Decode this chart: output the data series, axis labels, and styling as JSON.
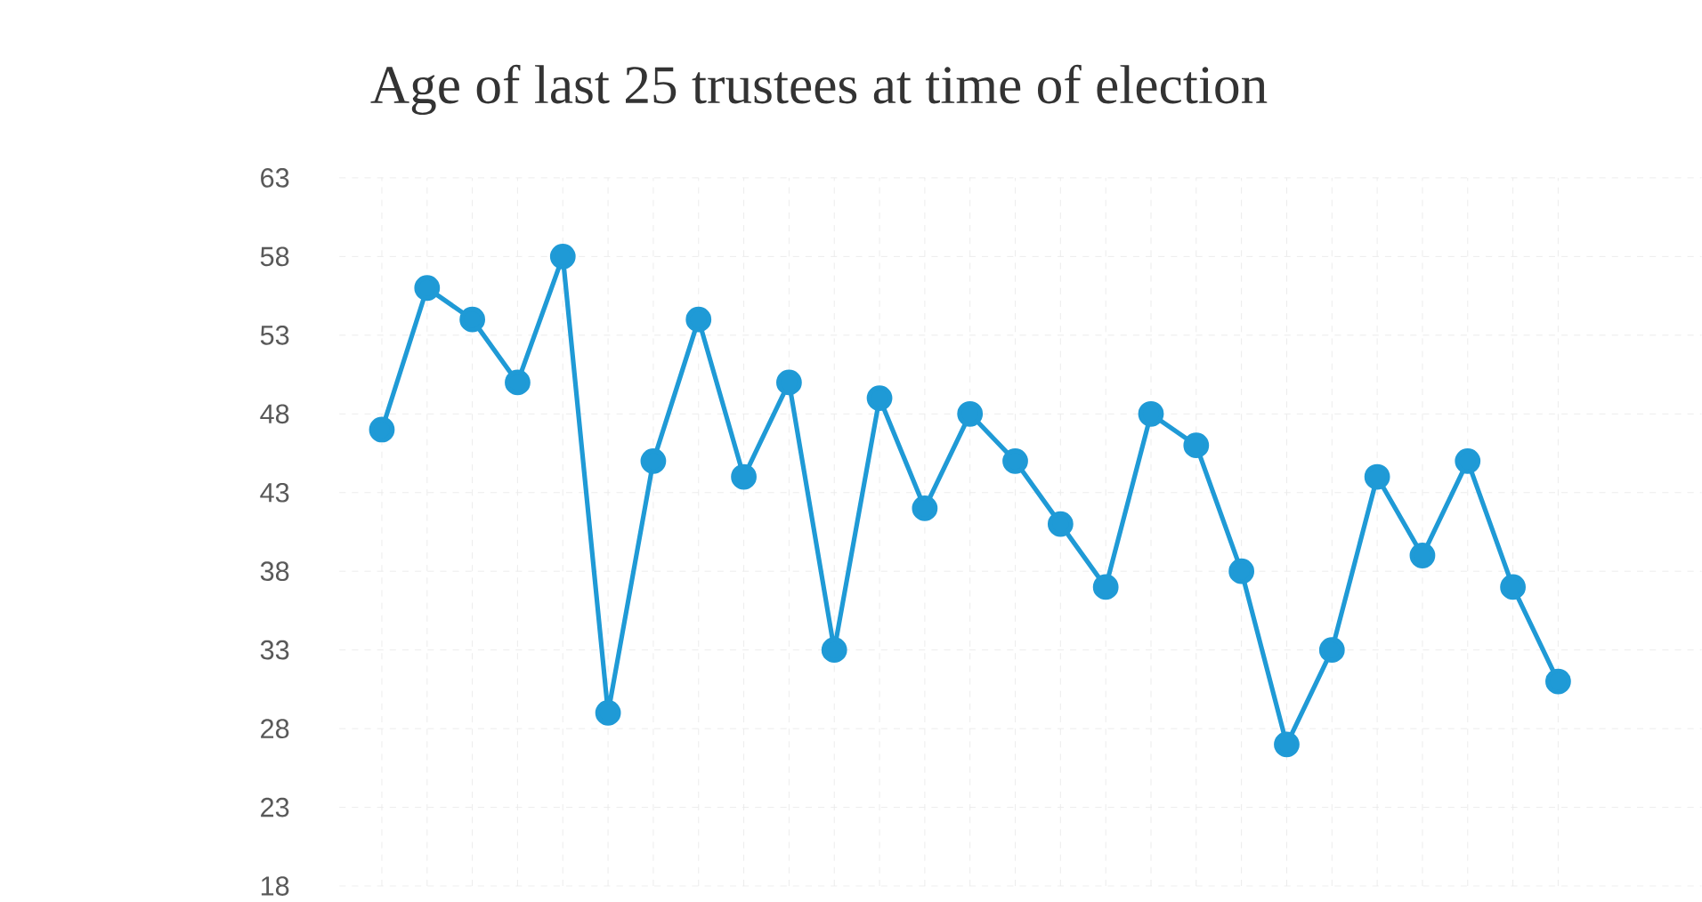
{
  "chart_data": {
    "type": "line",
    "title": "Age of last 25 trustees at time of election",
    "categories": [
      null,
      null,
      null,
      null,
      null,
      null,
      null,
      null,
      null,
      null,
      null,
      null,
      null,
      null,
      null,
      null,
      null,
      null,
      null,
      null,
      null,
      null,
      null,
      null,
      null,
      null,
      null
    ],
    "series": [
      {
        "color": "#1f9ad6",
        "values": [
          47,
          56,
          54,
          50,
          58,
          29,
          45,
          54,
          44,
          50,
          33,
          49,
          42,
          48,
          45,
          41,
          37,
          48,
          46,
          38,
          27,
          33,
          44,
          39,
          45,
          37,
          31
        ]
      }
    ],
    "ylim": [
      18,
      63
    ],
    "yticks": [
      18,
      23,
      28,
      33,
      38,
      43,
      48,
      53,
      58,
      63
    ],
    "grid": true,
    "marker": "circle",
    "line_style": "solid"
  }
}
